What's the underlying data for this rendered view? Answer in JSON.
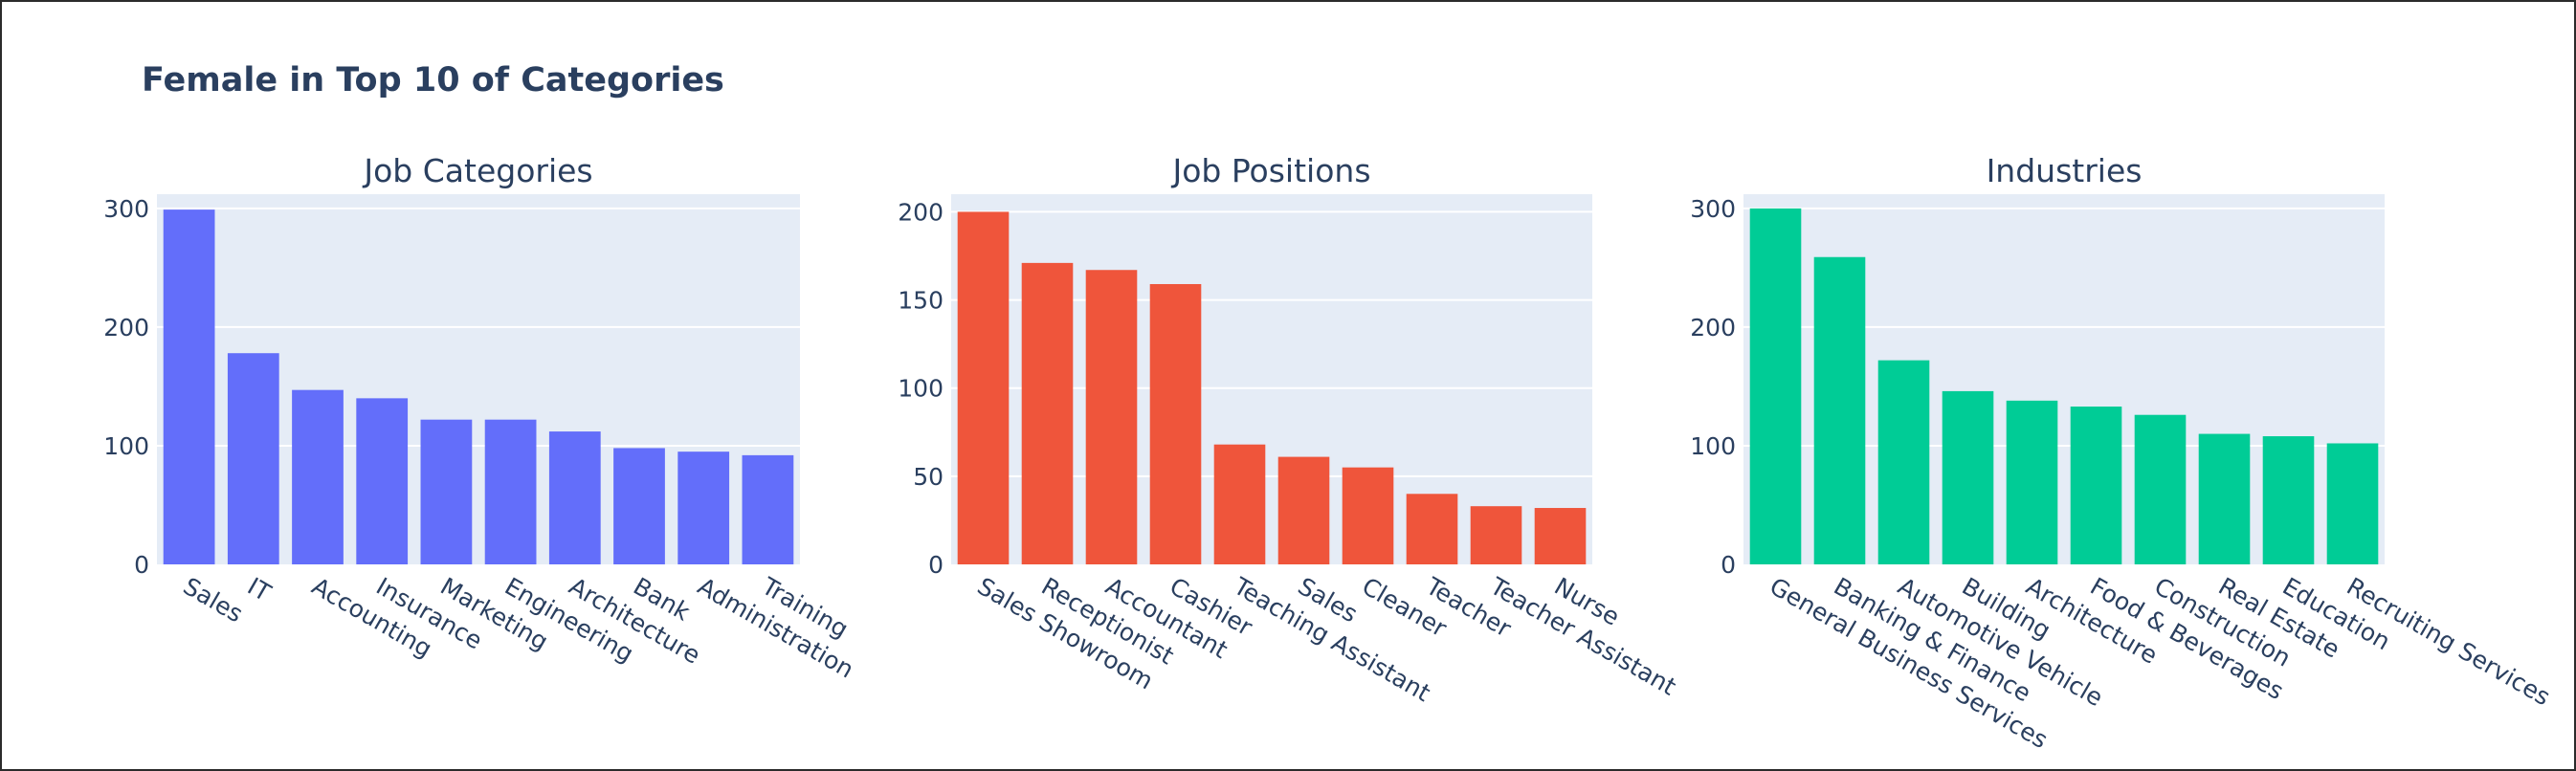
{
  "title": "Female in Top 10 of Categories",
  "chart_data": [
    {
      "type": "bar",
      "title": "Job Categories",
      "color": "#636efa",
      "categories": [
        "Sales",
        "IT",
        "Accounting",
        "Insurance",
        "Marketing",
        "Engineering",
        "Architecture",
        "Bank",
        "Administration",
        "Training"
      ],
      "values": [
        299,
        178,
        147,
        140,
        122,
        122,
        112,
        98,
        95,
        92
      ],
      "ylim": [
        0,
        312
      ],
      "yticks": [
        0,
        100,
        200,
        300
      ],
      "grid": true
    },
    {
      "type": "bar",
      "title": "Job Positions",
      "color": "#ef553b",
      "categories": [
        "Sales Showroom",
        "Receptionist",
        "Accountant",
        "Cashier",
        "Teaching Assistant",
        "Sales",
        "Cleaner",
        "Teacher",
        "Teacher Assistant",
        "Nurse"
      ],
      "values": [
        200,
        171,
        167,
        159,
        68,
        61,
        55,
        40,
        33,
        32
      ],
      "ylim": [
        0,
        210
      ],
      "yticks": [
        0,
        50,
        100,
        150,
        200
      ],
      "grid": true
    },
    {
      "type": "bar",
      "title": "Industries",
      "color": "#00cc96",
      "categories": [
        "General Business Services",
        "Banking & Finance",
        "Automotive Vehicle",
        "Building",
        "Architecture",
        "Food & Beverages",
        "Construction",
        "Real Estate",
        "Education",
        "Recruiting Services"
      ],
      "values": [
        300,
        259,
        172,
        146,
        138,
        133,
        126,
        110,
        108,
        102
      ],
      "ylim": [
        0,
        312
      ],
      "yticks": [
        0,
        100,
        200,
        300
      ],
      "grid": true
    }
  ]
}
